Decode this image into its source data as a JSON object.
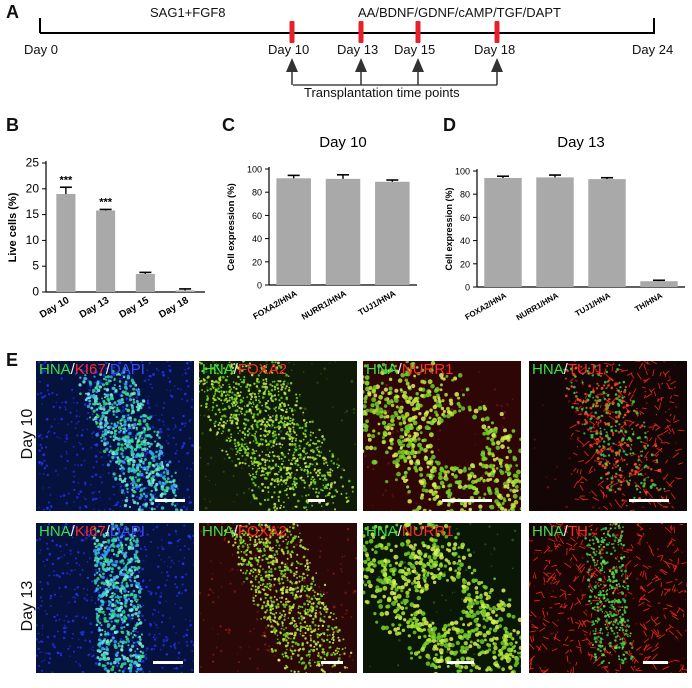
{
  "panels": {
    "A": "A",
    "B": "B",
    "C": "C",
    "D": "D",
    "E": "E"
  },
  "timeline": {
    "phase1": "SAG1+FGF8",
    "phase2": "AA/BDNF/GDNF/cAMP/TGF/DAPT",
    "days": [
      "Day 0",
      "Day 10",
      "Day 13",
      "Day 15",
      "Day 18",
      "Day 24"
    ],
    "transplant_caption": "Transplantation time points",
    "marker_color": "#e8202a"
  },
  "chart_data": [
    {
      "type": "bar",
      "panel": "B",
      "title": "",
      "ylabel": "Live cells (%)",
      "categories": [
        "Day 10",
        "Day 13",
        "Day 15",
        "Day 18"
      ],
      "values": [
        19,
        15.8,
        3.5,
        0.3
      ],
      "errors": [
        1.3,
        0.2,
        0.3,
        0.3
      ],
      "annotations": [
        "***",
        "***",
        "",
        ""
      ],
      "ylim": [
        0,
        25
      ],
      "yticks": [
        "0",
        "5",
        "10",
        "15",
        "20",
        "25"
      ]
    },
    {
      "type": "bar",
      "panel": "C",
      "title": "Day 10",
      "ylabel": "Cell expression (%)",
      "categories": [
        "FOXA2/HNA",
        "NURR1/HNA",
        "TUJ1/HNA"
      ],
      "values": [
        92,
        91.5,
        89
      ],
      "errors": [
        2.5,
        3.5,
        1.5
      ],
      "ylim": [
        0,
        100
      ],
      "yticks": [
        "0",
        "20",
        "40",
        "60",
        "80",
        "100"
      ]
    },
    {
      "type": "bar",
      "panel": "D",
      "title": "Day 13",
      "ylabel": "Cell expression (%)",
      "categories": [
        "FOXA2/HNA",
        "NURR1/HNA",
        "TUJ1/HNA",
        "TH/HNA"
      ],
      "values": [
        94,
        94.5,
        93,
        5
      ],
      "errors": [
        1.5,
        2.0,
        1.2,
        0.8
      ],
      "ylim": [
        0,
        100
      ],
      "yticks": [
        "0",
        "20",
        "40",
        "60",
        "80",
        "100"
      ]
    }
  ],
  "colors": {
    "bar": "#a9a9a9",
    "green": "#37e04a",
    "red": "#ff2a2a",
    "blue": "#3a4dff"
  },
  "micrographs": {
    "row_labels": [
      "Day 10",
      "Day 13"
    ],
    "sep": "/",
    "row1": [
      {
        "a": "HNA",
        "b": "KI67",
        "c": "DAPI"
      },
      {
        "a": "HNA",
        "b": "FOXA2"
      },
      {
        "a": "HNA",
        "b": "NURR1"
      },
      {
        "a": "HNA",
        "b": "TUJ1"
      }
    ],
    "row2": [
      {
        "a": "HNA",
        "b": "KI67",
        "c": "DAPI"
      },
      {
        "a": "HNA",
        "b": "FOXA2"
      },
      {
        "a": "HNA",
        "b": "NURR1"
      },
      {
        "a": "HNA",
        "b": "TH"
      }
    ]
  }
}
